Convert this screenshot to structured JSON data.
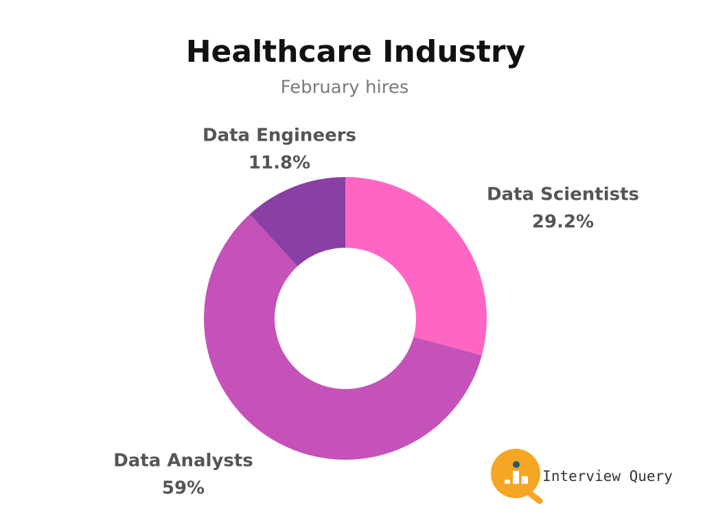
{
  "chart_data": {
    "type": "donut",
    "title": "Healthcare Industry",
    "subtitle": "February hires",
    "categories": [
      "Data Scientists",
      "Data Analysts",
      "Data Engineers"
    ],
    "values": [
      29.2,
      59,
      11.8
    ],
    "value_labels": [
      "29.2%",
      "59%",
      "11.8%"
    ],
    "colors": [
      "#ff66c4",
      "#c552b8",
      "#8a3fa4"
    ],
    "logo_text": "Interview Query"
  }
}
